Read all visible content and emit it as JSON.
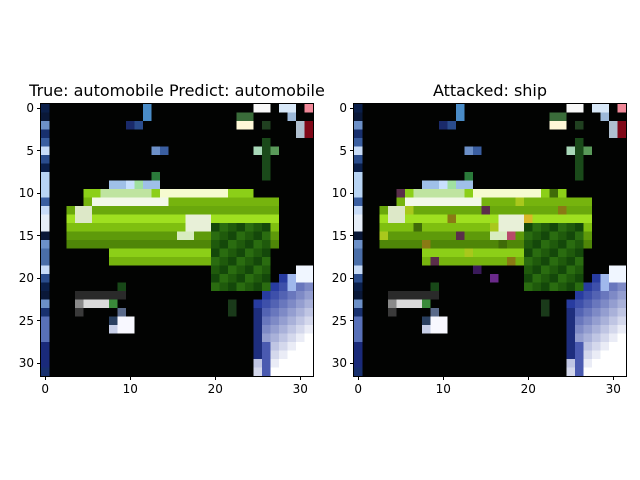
{
  "panels": [
    {
      "title": "True: automobile  Predict: automobile"
    },
    {
      "title": "Attacked: ship"
    }
  ],
  "axes": {
    "x_ticks": [
      "0",
      "10",
      "20",
      "30"
    ],
    "y_ticks": [
      "0",
      "5",
      "10",
      "15",
      "20",
      "25",
      "30"
    ]
  }
}
